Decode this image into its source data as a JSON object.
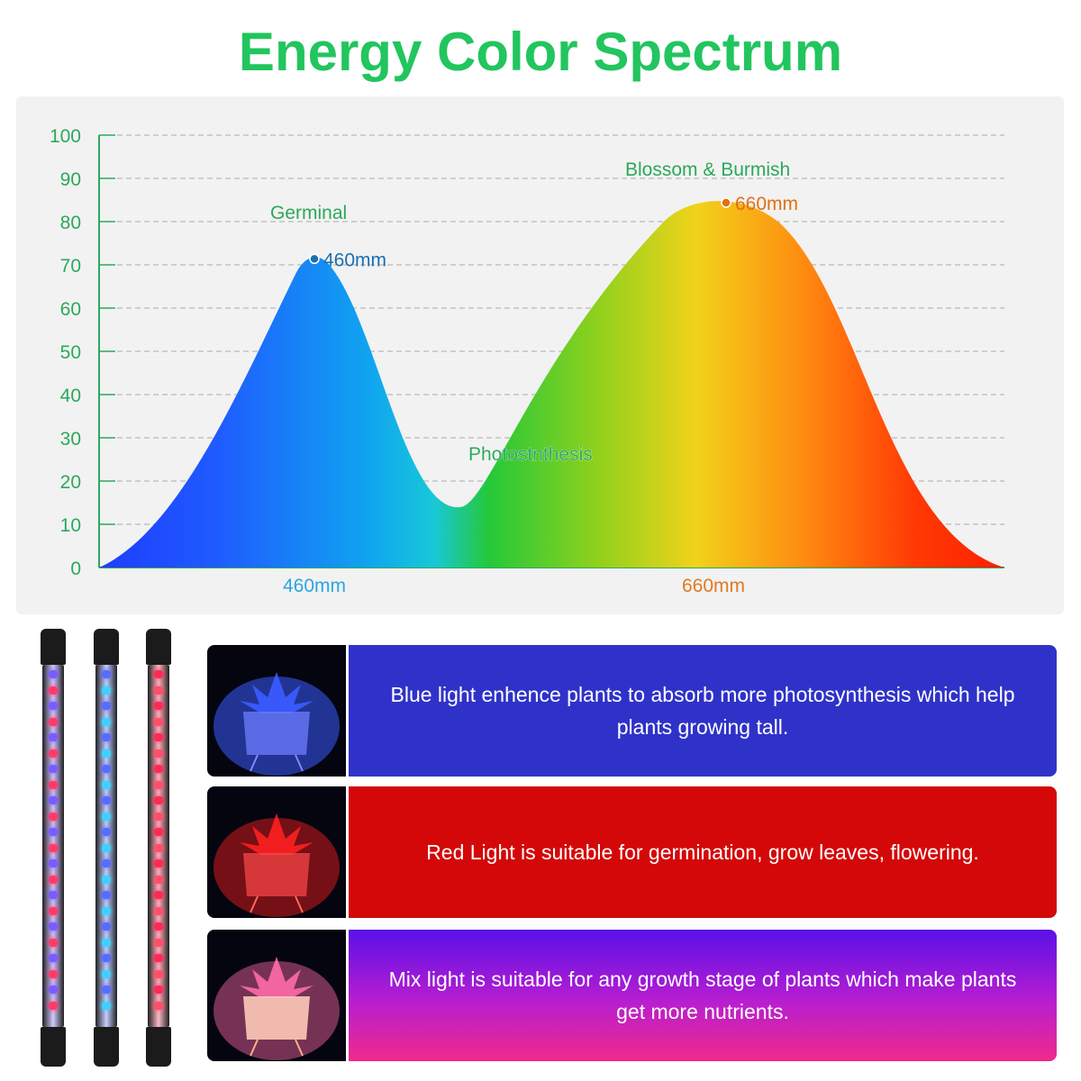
{
  "title": "Energy Color Spectrum",
  "colors": {
    "title": "#22c55e",
    "axis": "#2ca85c",
    "blue_peak": "#1a6fb0",
    "red_peak": "#e07010",
    "grid": "#aaaaaa"
  },
  "chart_data": {
    "type": "area",
    "title": "",
    "xlabel": "",
    "ylabel": "",
    "ylim": [
      0,
      100
    ],
    "yticks": [
      0,
      10,
      20,
      30,
      40,
      50,
      60,
      70,
      80,
      90,
      100
    ],
    "x_tick_labels": [
      {
        "label": "460mm",
        "color": "#2aa6e0"
      },
      {
        "label": "660mm",
        "color": "#e07a20"
      }
    ],
    "grid": "horizontal dashed",
    "series": [
      {
        "values": [
          0,
          20,
          45,
          72,
          40,
          14,
          30,
          60,
          85,
          60,
          20,
          0
        ],
        "gradient": "blue-cyan-green-yellow-orange-red"
      }
    ],
    "annotations": {
      "germinal": "Germinal",
      "peak_blue_label": "460mm",
      "peak_blue_value": 72,
      "blossom": "Blossom & Burmish",
      "peak_red_label": "660mm",
      "peak_red_value": 85,
      "valley": "Photostnthesis",
      "valley_value": 14
    }
  },
  "lamps": [
    {
      "name": "mixed",
      "colors": [
        "#7b5cff",
        "#ff3b6b"
      ]
    },
    {
      "name": "blue",
      "colors": [
        "#5a6bff",
        "#3fd0ff"
      ]
    },
    {
      "name": "red",
      "colors": [
        "#ff2a55",
        "#ff4f6a"
      ]
    }
  ],
  "info_rows": [
    {
      "text": "Blue light enhence plants to absorb more photosynthesis which help plants growing tall.",
      "bg": "#2f32c8",
      "glow": "#3b5bff"
    },
    {
      "text": "Red Light is suitable for germination, grow leaves, flowering.",
      "bg": "#d40808",
      "glow": "#ff2020"
    },
    {
      "text": "Mix light is suitable for any growth stage of plants which make plants get more nutrients.",
      "bg": "linear-gradient(180deg, #5a10e8 0%, #b81ed0 55%, #f02a8a 100%)",
      "glow": "#ff6aa8"
    }
  ]
}
